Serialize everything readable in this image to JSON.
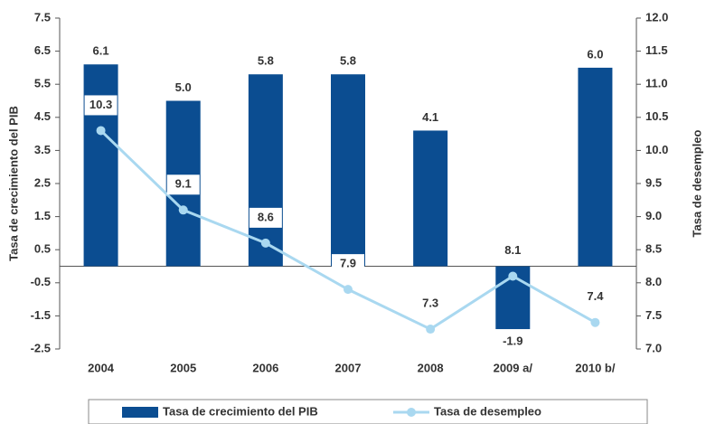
{
  "chart_data": {
    "type": "bar-line",
    "categories": [
      "2004",
      "2005",
      "2006",
      "2007",
      "2008",
      "2009 a/",
      "2010 b/"
    ],
    "ylabel": "Tasa de crecimiento del PIB",
    "y2label": "Tasa de desempleo",
    "ylim": [
      -2.5,
      7.5
    ],
    "yticks": [
      -2.5,
      -1.5,
      -0.5,
      0.5,
      1.5,
      2.5,
      3.5,
      4.5,
      5.5,
      6.5,
      7.5
    ],
    "y2lim": [
      7,
      12
    ],
    "y2ticks": [
      {
        "value": 7,
        "label": "7.0"
      },
      7.5,
      {
        "value": 8,
        "label": "8.0"
      },
      8.5,
      {
        "value": 9,
        "label": "9.0"
      },
      9.5,
      {
        "value": 10,
        "label": "10.0"
      },
      10.5,
      {
        "value": 11,
        "label": "11.0"
      },
      11.5,
      {
        "value": 12,
        "label": "12.0"
      }
    ],
    "series": [
      {
        "name": "Tasa de crecimiento del PIB",
        "type": "bar",
        "color": "#0b4d91",
        "values": [
          6.1,
          5.0,
          5.8,
          5.8,
          4.1,
          -1.9,
          6.0
        ],
        "value_labels": [
          "6.1",
          "5.0",
          "5.8",
          "5.8",
          "4.1",
          "-1.9",
          "6.0"
        ]
      },
      {
        "name": "Tasa de desempleo",
        "type": "line",
        "axis": "y2",
        "color": "#a9d8f0",
        "values": [
          10.3,
          9.1,
          8.6,
          7.9,
          7.3,
          8.1,
          7.4
        ]
      }
    ]
  }
}
